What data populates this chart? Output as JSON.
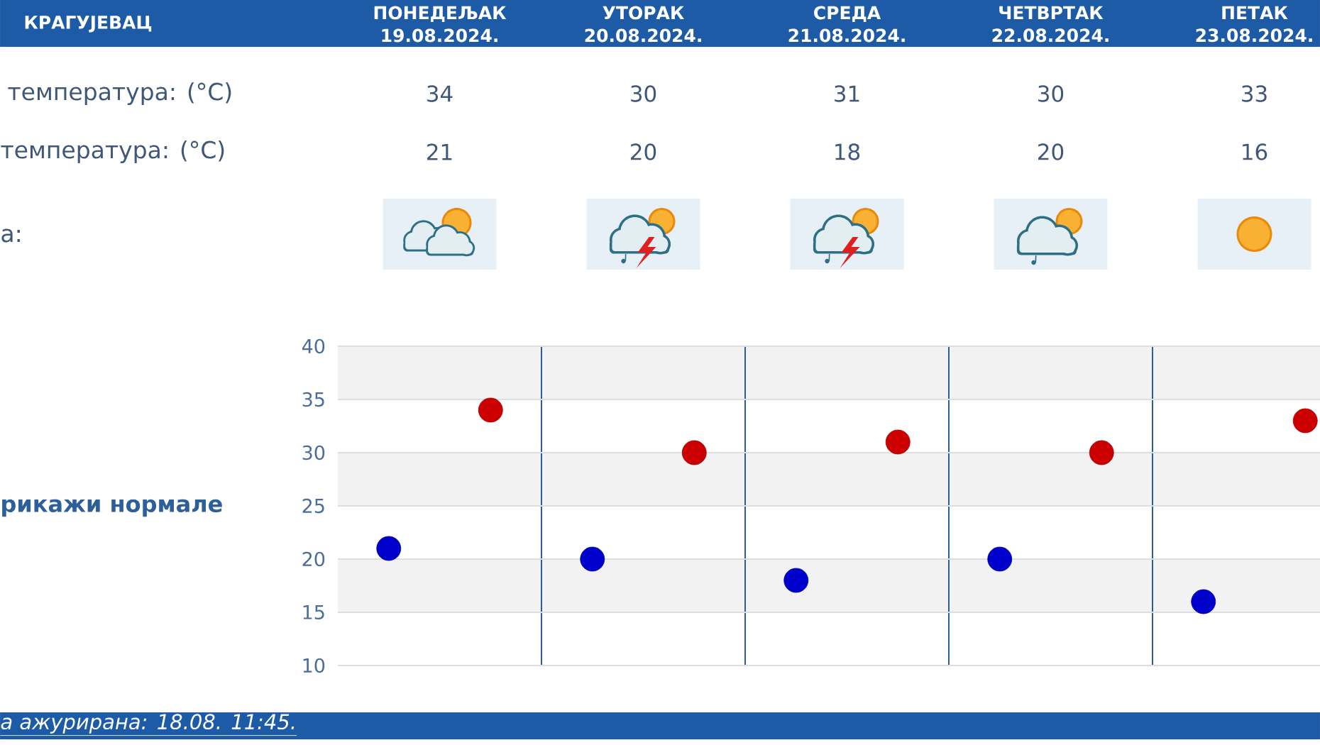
{
  "chart_data": [
    {
      "type": "other",
      "title": "КРАГУЈЕВАЦ",
      "categories": [
        "ПОНЕДЕЉАК 19.08.2024.",
        "УТОРАК 20.08.2024.",
        "СРЕДА 21.08.2024.",
        "ЧЕТВРТАК 22.08.2024.",
        "ПЕТАК 23.08.2024."
      ],
      "series": [
        {
          "name": "температура: (°C)",
          "values": [
            34,
            30,
            31,
            30,
            33
          ]
        },
        {
          "name": "температура: (°C)",
          "values": [
            21,
            20,
            18,
            20,
            16
          ]
        }
      ],
      "data_labels": true,
      "annotations": [
        "а:"
      ]
    },
    {
      "type": "scatter",
      "categories": [
        null,
        null,
        null,
        null,
        null
      ],
      "series": [
        {
          "color": "#cc0000",
          "values": [
            34,
            30,
            31,
            30,
            33
          ]
        },
        {
          "color": "#0000cc",
          "values": [
            21,
            20,
            18,
            20,
            16
          ]
        }
      ],
      "ylim": [
        10,
        40
      ],
      "yticks": [
        10,
        15,
        20,
        25,
        30,
        35,
        40
      ],
      "grid": true,
      "marker": "circle",
      "bands": [
        {
          "axis": "y",
          "from": 35,
          "to": 40,
          "color": "#f2f2f2"
        },
        {
          "axis": "y",
          "from": 25,
          "to": 30,
          "color": "#f2f2f2"
        },
        {
          "axis": "y",
          "from": 15,
          "to": 20,
          "color": "#f2f2f2"
        }
      ],
      "annotations": [
        "рикажи нормале",
        "а ажурирана: 18.08. 11:45."
      ]
    }
  ]
}
